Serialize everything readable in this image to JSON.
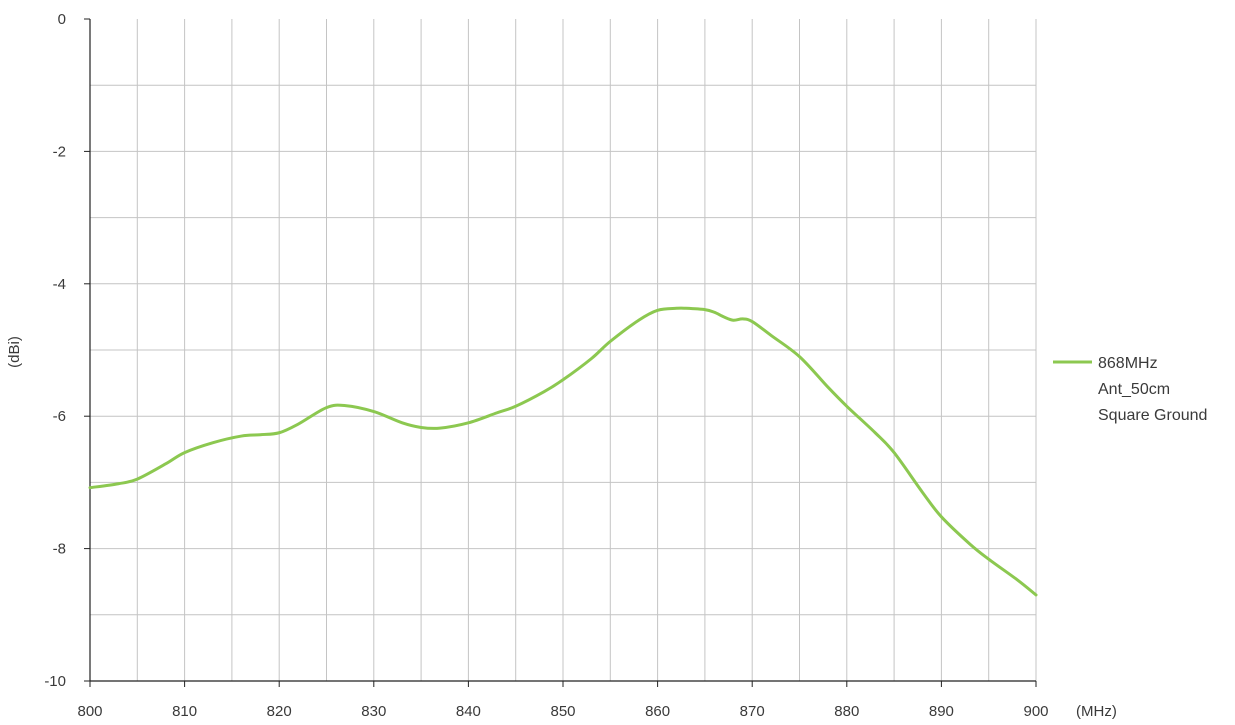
{
  "chart_data": {
    "type": "line",
    "title": "",
    "xlabel": "(MHz)",
    "ylabel": "(dBi)",
    "xlim": [
      800,
      900
    ],
    "ylim": [
      -10,
      0
    ],
    "x_ticks": [
      800,
      810,
      820,
      830,
      840,
      850,
      860,
      870,
      880,
      890,
      900
    ],
    "y_ticks": [
      0,
      -2,
      -4,
      -6,
      -8,
      -10
    ],
    "grid": true,
    "grid_x_step": 5,
    "grid_y_step": 1,
    "legend": {
      "placement": "right",
      "lines": [
        "868MHz",
        "Ant_50cm",
        "Square Ground"
      ]
    },
    "series": [
      {
        "name": "868MHz Ant_50cm Square Ground",
        "color": "#8cc850",
        "x": [
          800,
          803,
          805,
          808,
          810,
          813,
          816,
          818,
          820,
          822,
          825,
          827,
          830,
          833,
          835,
          837,
          840,
          843,
          845,
          848,
          850,
          853,
          855,
          858,
          860,
          862,
          863,
          865,
          866,
          867,
          868,
          869,
          870,
          872,
          875,
          878,
          880,
          883,
          885,
          888,
          890,
          893,
          895,
          898,
          900
        ],
        "y": [
          -7.08,
          -7.02,
          -6.95,
          -6.72,
          -6.55,
          -6.4,
          -6.3,
          -6.28,
          -6.25,
          -6.12,
          -5.87,
          -5.84,
          -5.93,
          -6.1,
          -6.17,
          -6.18,
          -6.1,
          -5.95,
          -5.85,
          -5.63,
          -5.45,
          -5.13,
          -4.87,
          -4.55,
          -4.4,
          -4.37,
          -4.37,
          -4.39,
          -4.43,
          -4.5,
          -4.55,
          -4.53,
          -4.57,
          -4.78,
          -5.1,
          -5.56,
          -5.85,
          -6.25,
          -6.55,
          -7.15,
          -7.52,
          -7.93,
          -8.16,
          -8.47,
          -8.7
        ]
      }
    ]
  }
}
